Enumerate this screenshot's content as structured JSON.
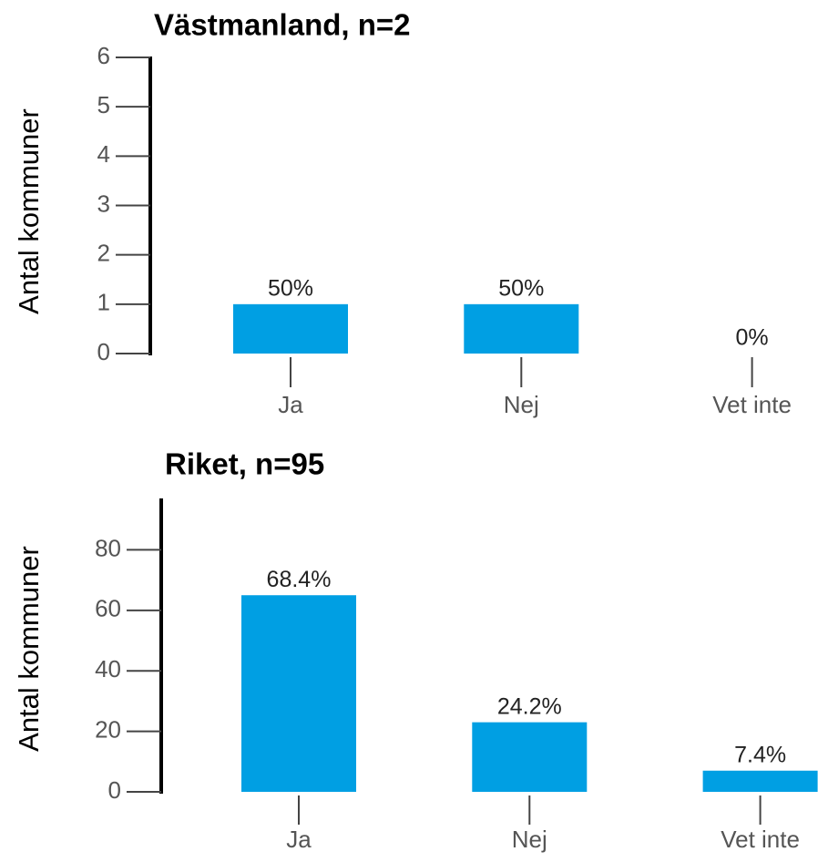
{
  "chart_data": [
    {
      "type": "bar",
      "title": "Västmanland, n=2",
      "y_label": "Antal kommuner",
      "categories": [
        "Ja",
        "Nej",
        "Vet inte"
      ],
      "values": [
        1,
        1,
        0
      ],
      "value_labels": [
        "50%",
        "50%",
        "0%"
      ],
      "color": "#009fe3",
      "ylim": [
        0,
        6
      ],
      "yticks": [
        0,
        1,
        2,
        3,
        4,
        5,
        6
      ]
    },
    {
      "type": "bar",
      "title": "Riket, n=95",
      "y_label": "Antal kommuner",
      "categories": [
        "Ja",
        "Nej",
        "Vet inte"
      ],
      "values": [
        65,
        23,
        7
      ],
      "value_labels": [
        "68.4%",
        "24.2%",
        "7.4%"
      ],
      "color": "#009fe3",
      "ylim": [
        0,
        97
      ],
      "yticks": [
        0,
        20,
        40,
        60,
        80
      ]
    }
  ]
}
